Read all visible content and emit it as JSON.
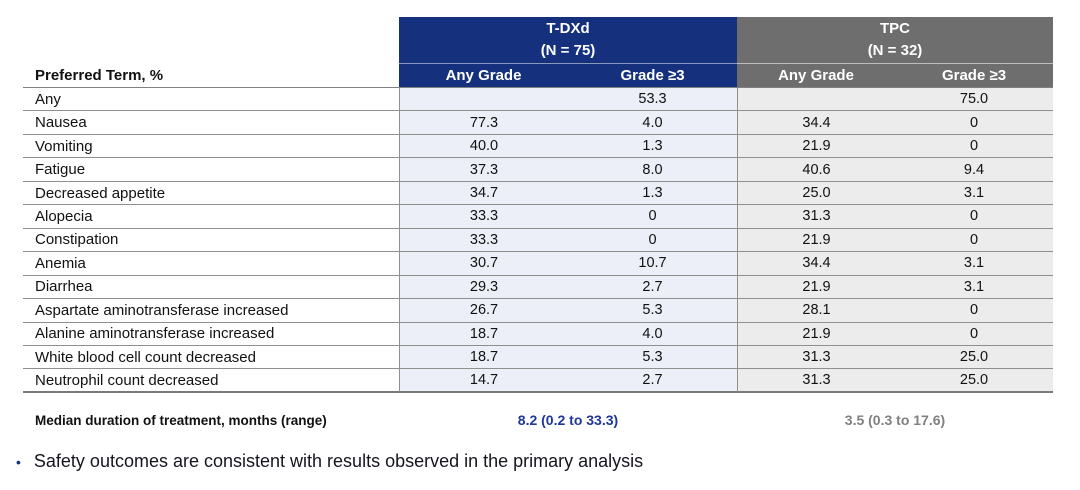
{
  "table": {
    "term_column_header": "Preferred Term, %",
    "groups": [
      {
        "name": "T-DXd",
        "n_label": "(N = 75)",
        "sub1": "Any Grade",
        "sub2": "Grade ≥3"
      },
      {
        "name": "TPC",
        "n_label": "(N = 32)",
        "sub1": "Any Grade",
        "sub2": "Grade ≥3"
      }
    ],
    "rows": [
      [
        "Any",
        "",
        "53.3",
        "",
        "75.0"
      ],
      [
        "Nausea",
        "77.3",
        "4.0",
        "34.4",
        "0"
      ],
      [
        "Vomiting",
        "40.0",
        "1.3",
        "21.9",
        "0"
      ],
      [
        "Fatigue",
        "37.3",
        "8.0",
        "40.6",
        "9.4"
      ],
      [
        "Decreased appetite",
        "34.7",
        "1.3",
        "25.0",
        "3.1"
      ],
      [
        "Alopecia",
        "33.3",
        "0",
        "31.3",
        "0"
      ],
      [
        "Constipation",
        "33.3",
        "0",
        "21.9",
        "0"
      ],
      [
        "Anemia",
        "30.7",
        "10.7",
        "34.4",
        "3.1"
      ],
      [
        "Diarrhea",
        "29.3",
        "2.7",
        "21.9",
        "3.1"
      ],
      [
        "Aspartate aminotransferase increased",
        "26.7",
        "5.3",
        "28.1",
        "0"
      ],
      [
        "Alanine aminotransferase increased",
        "18.7",
        "4.0",
        "21.9",
        "0"
      ],
      [
        "White blood cell count decreased",
        "18.7",
        "5.3",
        "31.3",
        "25.0"
      ],
      [
        "Neutrophil count decreased",
        "14.7",
        "2.7",
        "31.3",
        "25.0"
      ]
    ]
  },
  "footer": {
    "label": "Median duration of treatment, months (range)",
    "tdxd_value": "8.2 (0.2 to 33.3)",
    "tpc_value": "3.5 (0.3 to 17.6)"
  },
  "bullet": {
    "marker": "•",
    "text": "Safety outcomes are consistent with results observed in the primary analysis"
  },
  "colors": {
    "tdxd_header": "#15307c",
    "tpc_header": "#6e6e6e",
    "tdxd_cell_bg": "#edeff8",
    "tpc_cell_bg": "#ececec",
    "median_tdxd_text": "#1e3799",
    "median_tpc_text": "#808080"
  }
}
